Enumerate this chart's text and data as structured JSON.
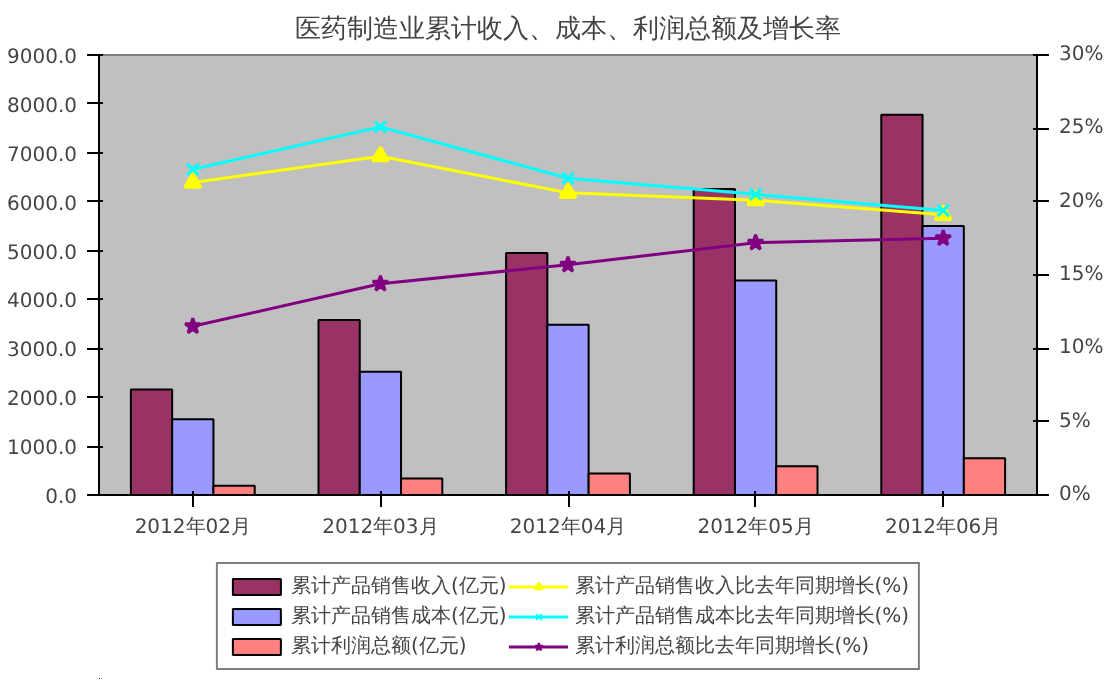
{
  "chart_data": {
    "type": "bar",
    "title": "医药制造业累计收入、成本、利润总额及增长率",
    "categories": [
      "2012年02月",
      "2012年03月",
      "2012年04月",
      "2012年05月",
      "2012年06月"
    ],
    "series": [
      {
        "name": "累计产品销售收入(亿元)",
        "color": "#993366",
        "values": [
          2160,
          3580,
          4950,
          6260,
          7780
        ]
      },
      {
        "name": "累计产品销售成本(亿元)",
        "color": "#9999ff",
        "values": [
          1550,
          2520,
          3480,
          4390,
          5500
        ]
      },
      {
        "name": "累计利润总额(亿元)",
        "color": "#ff8080",
        "values": [
          190,
          340,
          440,
          590,
          750
        ]
      },
      {
        "name": "累计产品销售收入比去年同期增长(%)",
        "type": "line",
        "axis": "y2",
        "marker": "triangle",
        "color": "#ffff00",
        "values": [
          21.3,
          23.1,
          20.6,
          20.1,
          19.1
        ]
      },
      {
        "name": "累计产品销售成本比去年同期增长(%)",
        "type": "line",
        "axis": "y2",
        "marker": "cross",
        "color": "#00ffff",
        "values": [
          22.2,
          25.1,
          21.6,
          20.5,
          19.4
        ]
      },
      {
        "name": "累计利润总额比去年同期增长(%)",
        "type": "line",
        "axis": "y2",
        "marker": "star",
        "color": "#800080",
        "values": [
          11.5,
          14.4,
          15.7,
          17.2,
          17.5
        ]
      }
    ],
    "ylim": [
      0,
      9000
    ],
    "yticks": [
      {
        "value": 0,
        "label": "0.0"
      },
      {
        "value": 1000,
        "label": "1000.0"
      },
      {
        "value": 2000,
        "label": "2000.0"
      },
      {
        "value": 3000,
        "label": "3000.0"
      },
      {
        "value": 4000,
        "label": "4000.0"
      },
      {
        "value": 5000,
        "label": "5000.0"
      },
      {
        "value": 6000,
        "label": "6000.0"
      },
      {
        "value": 7000,
        "label": "7000.0"
      },
      {
        "value": 8000,
        "label": "8000.0"
      },
      {
        "value": 9000,
        "label": "9000.0"
      }
    ],
    "y2lim": [
      0,
      30
    ],
    "y2ticks": [
      {
        "value": 0,
        "label": "0%"
      },
      {
        "value": 5,
        "label": "5%"
      },
      {
        "value": 10,
        "label": "10%"
      },
      {
        "value": 15,
        "label": "15%"
      },
      {
        "value": 20,
        "label": "20%"
      },
      {
        "value": 25,
        "label": "25%"
      },
      {
        "value": 30,
        "label": "30%"
      }
    ],
    "grid": false,
    "legend": "bottom",
    "line_style": "solid"
  }
}
